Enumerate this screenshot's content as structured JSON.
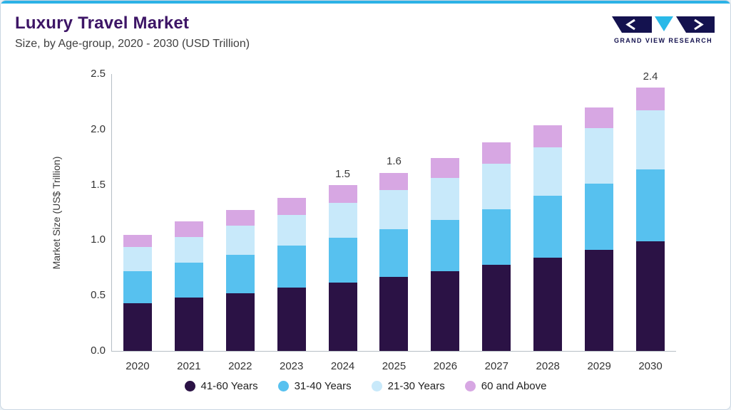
{
  "header": {
    "title": "Luxury Travel Market",
    "subtitle": "Size, by Age-group, 2020 - 2030 (USD Trillion)",
    "logo_text": "GRAND VIEW RESEARCH"
  },
  "colors": {
    "accent_top": "#2cb2e6",
    "title_purple": "#3d1566",
    "logo_navy": "#14124f",
    "logo_cyan": "#2ab9e8"
  },
  "chart_data": {
    "type": "bar",
    "stacked": true,
    "title": "Luxury Travel Market Size, by Age-group, 2020 - 2030 (USD Trillion)",
    "ylabel": "Market Size (US$ Trillion)",
    "xlabel": "",
    "ylim": [
      0,
      2.5
    ],
    "yticks": [
      "0.0",
      "0.5",
      "1.0",
      "1.5",
      "2.0",
      "2.5"
    ],
    "grid": false,
    "legend_position": "bottom",
    "categories": [
      "2020",
      "2021",
      "2022",
      "2023",
      "2024",
      "2025",
      "2026",
      "2027",
      "2028",
      "2029",
      "2030"
    ],
    "series": [
      {
        "name": "41-60 Years",
        "color": "#2b1245",
        "values": [
          0.43,
          0.48,
          0.52,
          0.57,
          0.62,
          0.67,
          0.72,
          0.78,
          0.84,
          0.91,
          0.99
        ]
      },
      {
        "name": "31-40 Years",
        "color": "#57c1ef",
        "values": [
          0.29,
          0.32,
          0.35,
          0.38,
          0.4,
          0.43,
          0.46,
          0.5,
          0.56,
          0.6,
          0.65
        ]
      },
      {
        "name": "21-30 Years",
        "color": "#c8e9fa",
        "values": [
          0.22,
          0.23,
          0.26,
          0.28,
          0.32,
          0.35,
          0.38,
          0.41,
          0.44,
          0.5,
          0.53
        ]
      },
      {
        "name": "60 and Above",
        "color": "#d7a7e3",
        "values": [
          0.11,
          0.14,
          0.14,
          0.15,
          0.16,
          0.16,
          0.18,
          0.19,
          0.2,
          0.19,
          0.21
        ]
      }
    ],
    "total_labels": [
      "",
      "",
      "",
      "",
      "1.5",
      "1.6",
      "",
      "",
      "",
      "",
      "2.4"
    ]
  }
}
